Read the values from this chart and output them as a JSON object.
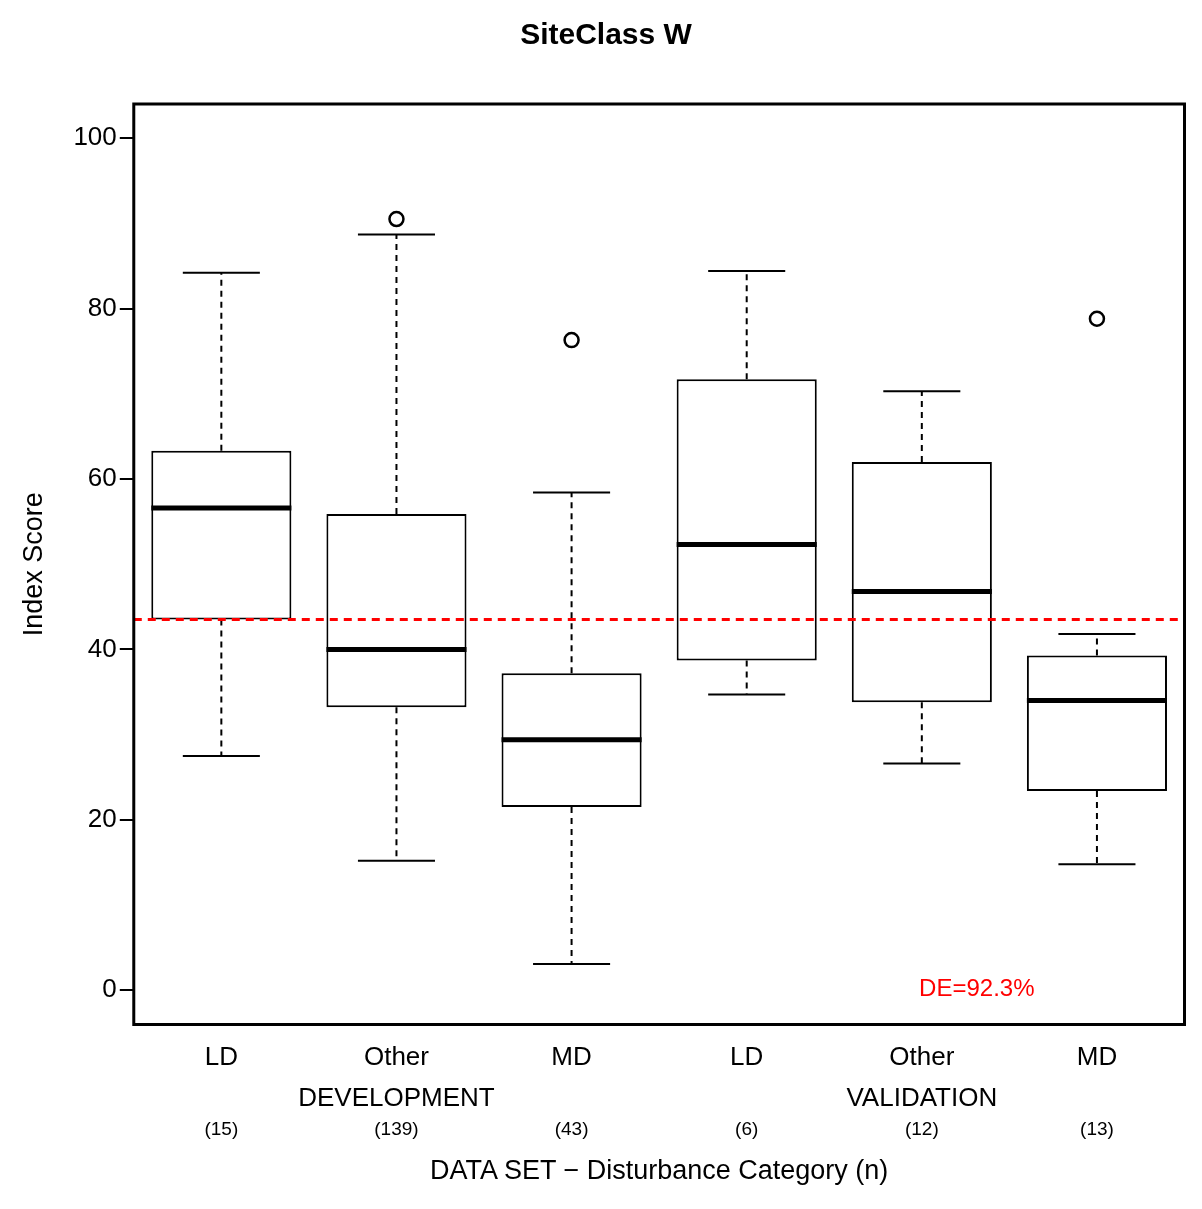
{
  "chart_data": {
    "type": "box",
    "title": "SiteClass W",
    "xlabel": "DATA SET − Disturbance Category (n)",
    "ylabel": "Index Score",
    "categories": [
      "LD",
      "Other",
      "MD",
      "LD",
      "Other",
      "MD"
    ],
    "boxes": [
      {
        "low": 27.5,
        "q1": 43.5,
        "median": 56.6,
        "q3": 63.3,
        "high": 84.2
      },
      {
        "low": 15.2,
        "q1": 33.2,
        "median": 40.0,
        "q3": 55.9,
        "high": 88.7,
        "outliers": [
          90.5
        ]
      },
      {
        "low": 3.1,
        "q1": 21.5,
        "median": 29.4,
        "q3": 37.2,
        "high": 58.4,
        "outliers": [
          76.3
        ]
      },
      {
        "low": 34.7,
        "q1": 38.7,
        "median": 52.3,
        "q3": 71.7,
        "high": 84.4
      },
      {
        "low": 26.6,
        "q1": 33.8,
        "median": 46.8,
        "q3": 62.0,
        "high": 70.3
      },
      {
        "low": 14.8,
        "q1": 23.4,
        "median": 34.0,
        "q3": 39.3,
        "high": 41.8,
        "outliers": [
          78.8
        ]
      }
    ],
    "ylim": [
      -4,
      104
    ],
    "yticks": [
      0,
      20,
      40,
      60,
      80,
      100
    ],
    "ref_lines": [
      {
        "axis": "y",
        "value": 43.5,
        "color": "#ff0000",
        "line_style": "dashed"
      }
    ],
    "annotations": [
      "DEVELOPMENT",
      "VALIDATION",
      "(15)",
      "(139)",
      "(43)",
      "(6)",
      "(12)",
      "(13)",
      "DE=92.3%"
    ]
  }
}
